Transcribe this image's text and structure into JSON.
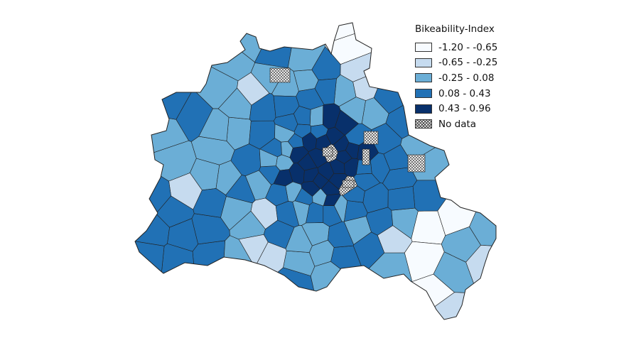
{
  "legend": {
    "title": "Bikeability-Index",
    "classes": [
      {
        "label": "-1.20 - -0.65",
        "color": "#f7fbff"
      },
      {
        "label": "-0.65 - -0.25",
        "color": "#c6dbef"
      },
      {
        "label": "-0.25 - 0.08",
        "color": "#6baed6"
      },
      {
        "label": "0.08 - 0.43",
        "color": "#2171b5"
      },
      {
        "label": "0.43 - 0.96",
        "color": "#08306b"
      }
    ],
    "no_data_label": "No data"
  },
  "colors": {
    "outline": "#222222",
    "background": "#ffffff",
    "hatch": "#444444"
  }
}
